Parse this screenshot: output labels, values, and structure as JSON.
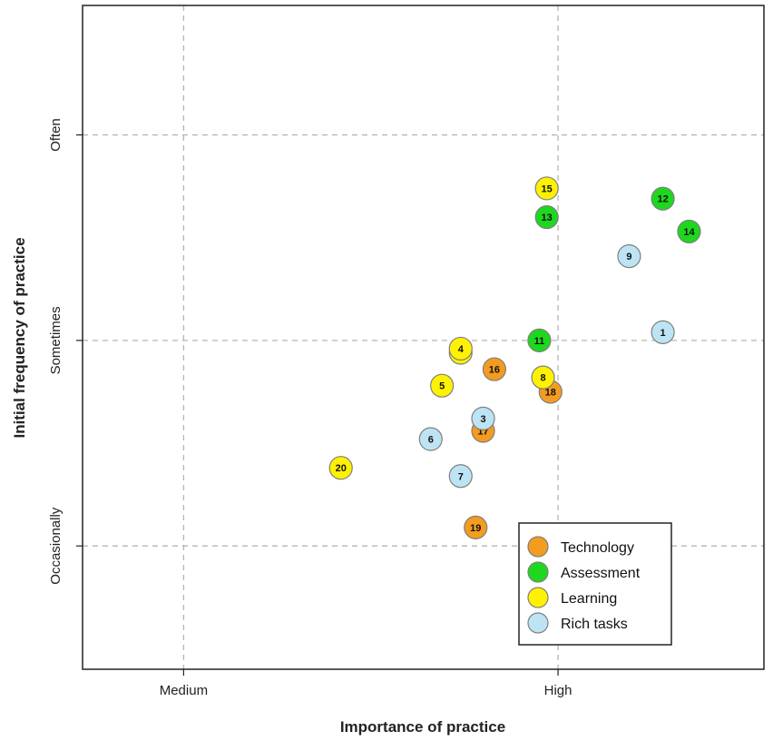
{
  "chart_data": {
    "type": "scatter",
    "xlabel": "Importance of practice",
    "ylabel": "Initial frequency of practice",
    "x_ticks": [
      {
        "value": 1,
        "label": "Medium"
      },
      {
        "value": 2,
        "label": "High"
      }
    ],
    "y_ticks": [
      {
        "value": 1,
        "label": "Occasionally"
      },
      {
        "value": 2,
        "label": "Sometimes"
      },
      {
        "value": 3,
        "label": "Often"
      }
    ],
    "xlim": [
      0.73,
      2.55
    ],
    "ylim": [
      0.4,
      3.63
    ],
    "grid": true,
    "legend_position": "bottom-right",
    "series": [
      {
        "name": "Technology",
        "color": "#F39C1F",
        "points": [
          {
            "id": "16",
            "x": 1.83,
            "y": 1.86
          },
          {
            "id": "17",
            "x": 1.8,
            "y": 1.56
          },
          {
            "id": "18",
            "x": 1.98,
            "y": 1.75
          },
          {
            "id": "19",
            "x": 1.78,
            "y": 1.09
          }
        ]
      },
      {
        "name": "Assessment",
        "color": "#1ED81E",
        "points": [
          {
            "id": "11",
            "x": 1.95,
            "y": 2.0
          },
          {
            "id": "12",
            "x": 2.28,
            "y": 2.69
          },
          {
            "id": "13",
            "x": 1.97,
            "y": 2.6
          },
          {
            "id": "14",
            "x": 2.35,
            "y": 2.53
          }
        ]
      },
      {
        "name": "Learning",
        "color": "#FFF200",
        "points": [
          {
            "id": "2",
            "x": 1.74,
            "y": 1.94
          },
          {
            "id": "4",
            "x": 1.74,
            "y": 1.96
          },
          {
            "id": "5",
            "x": 1.69,
            "y": 1.78
          },
          {
            "id": "8",
            "x": 1.96,
            "y": 1.82
          },
          {
            "id": "15",
            "x": 1.97,
            "y": 2.74
          },
          {
            "id": "20",
            "x": 1.42,
            "y": 1.38
          }
        ]
      },
      {
        "name": "Rich tasks",
        "color": "#BDE4F4",
        "points": [
          {
            "id": "1",
            "x": 2.28,
            "y": 2.04
          },
          {
            "id": "3",
            "x": 1.8,
            "y": 1.62
          },
          {
            "id": "6",
            "x": 1.66,
            "y": 1.52
          },
          {
            "id": "7",
            "x": 1.74,
            "y": 1.34
          },
          {
            "id": "9",
            "x": 2.19,
            "y": 2.41
          }
        ]
      }
    ]
  }
}
